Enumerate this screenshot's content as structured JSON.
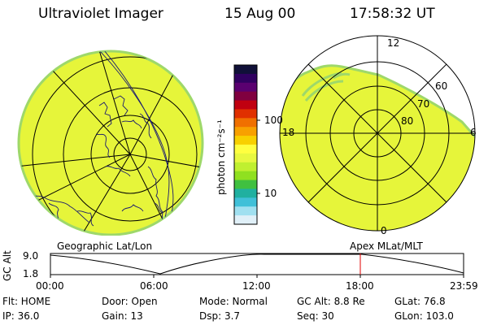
{
  "header": {
    "title": "Ultraviolet Imager",
    "date": "15 Aug 00",
    "time": "17:58:32 UT"
  },
  "colorbar": {
    "unit_label": "photon cm⁻²s⁻¹",
    "ticks": [
      "100",
      "10"
    ],
    "colors": [
      "#101038",
      "#300060",
      "#5a0070",
      "#800040",
      "#c00010",
      "#e03000",
      "#f07000",
      "#f8a000",
      "#f8d000",
      "#ffff40",
      "#e8f840",
      "#c0f030",
      "#90e020",
      "#40c040",
      "#20b0a0",
      "#40c0d8",
      "#a0e0f0",
      "#e0f0f8"
    ]
  },
  "panels": {
    "left_label": "Geographic Lat/Lon",
    "right_label": "Apex MLat/MLT",
    "polar_mlt_labels": [
      "12",
      "18",
      "6",
      "0"
    ],
    "polar_lat_labels": [
      "60",
      "70",
      "80"
    ]
  },
  "altitude_plot": {
    "ylabel": "GC Alt",
    "y_ticks": [
      "9.0",
      "1.8"
    ],
    "x_ticks": [
      "00:00",
      "06:00",
      "12:00",
      "18:00",
      "23:59"
    ],
    "marker_time": "17:58",
    "marker_color": "#e00000"
  },
  "status": {
    "flt": "Flt: HOME",
    "ip": "IP: 36.0",
    "door": "Door: Open",
    "gain": "Gain: 13",
    "mode": "Mode: Normal",
    "dsp": "Dsp:     3.7",
    "gcalt": "GC Alt: 8.8 Re",
    "seq": "Seq: 30",
    "glat": "GLat:  76.8",
    "glon": "GLon: 103.0"
  },
  "colors": {
    "image_fill": "#e6f53a",
    "image_edge": "#9ed86a",
    "grid": "#000000"
  }
}
